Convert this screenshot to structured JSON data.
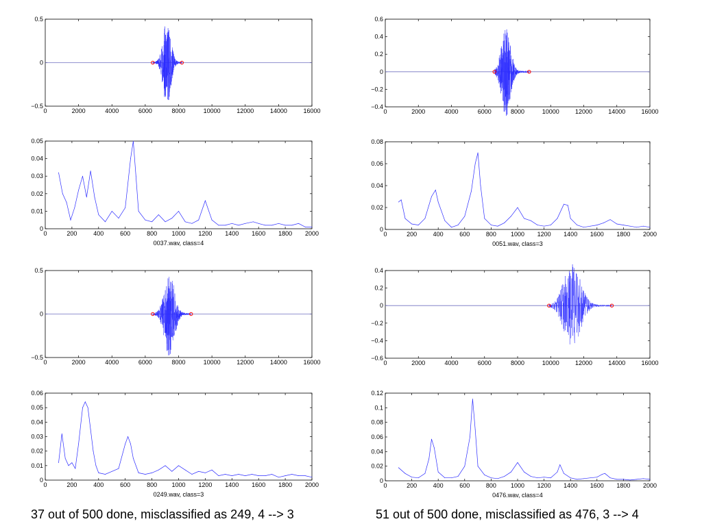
{
  "colors": {
    "wave": "#2b2bff",
    "marker": "#ff0000",
    "axis": "#000000",
    "zero_line": "#7070c0"
  },
  "chart_data": [
    {
      "type": "line",
      "signal": "waveform",
      "xlim": [
        0,
        16000
      ],
      "ylim": [
        -0.5,
        0.5
      ],
      "xticks": [
        "0",
        "2000",
        "4000",
        "6000",
        "8000",
        "10000",
        "12000",
        "14000",
        "16000"
      ],
      "yticks": [
        "-0.5",
        "0",
        "0.5"
      ],
      "series": [
        {
          "burst_start": 6450,
          "burst_end": 8200,
          "peak_x": 7300,
          "peak_amp": 0.48
        }
      ],
      "markers": [
        6450,
        8200
      ],
      "xlabel": ""
    },
    {
      "type": "line",
      "signal": "spectrum",
      "xlim": [
        0,
        2000
      ],
      "ylim": [
        0,
        0.05
      ],
      "xticks": [
        "0",
        "200",
        "400",
        "600",
        "800",
        "1000",
        "1200",
        "1400",
        "1600",
        "1800",
        "2000"
      ],
      "yticks": [
        "0",
        "0.01",
        "0.02",
        "0.03",
        "0.04",
        "0.05"
      ],
      "series": [
        {
          "x": [
            100,
            130,
            160,
            190,
            220,
            250,
            280,
            310,
            340,
            370,
            400,
            450,
            500,
            550,
            600,
            640,
            660,
            680,
            700,
            750,
            800,
            850,
            900,
            950,
            1000,
            1050,
            1100,
            1150,
            1200,
            1250,
            1300,
            1350,
            1400,
            1450,
            1500,
            1560,
            1600,
            1650,
            1700,
            1750,
            1800,
            1850,
            1900,
            1950,
            2000
          ],
          "y": [
            0.032,
            0.02,
            0.015,
            0.005,
            0.012,
            0.022,
            0.03,
            0.018,
            0.033,
            0.018,
            0.008,
            0.004,
            0.01,
            0.006,
            0.012,
            0.04,
            0.05,
            0.03,
            0.01,
            0.005,
            0.004,
            0.008,
            0.004,
            0.006,
            0.01,
            0.004,
            0.003,
            0.005,
            0.016,
            0.005,
            0.002,
            0.002,
            0.003,
            0.002,
            0.003,
            0.004,
            0.003,
            0.002,
            0.002,
            0.003,
            0.002,
            0.002,
            0.003,
            0.001,
            0.001
          ]
        }
      ],
      "xlabel": "0037.wav, class=4"
    },
    {
      "type": "line",
      "signal": "waveform",
      "xlim": [
        0,
        16000
      ],
      "ylim": [
        -0.5,
        0.5
      ],
      "xticks": [
        "0",
        "2000",
        "4000",
        "6000",
        "8000",
        "10000",
        "12000",
        "14000",
        "16000"
      ],
      "yticks": [
        "-0.5",
        "0",
        "0.5"
      ],
      "series": [
        {
          "burst_start": 6450,
          "burst_end": 8750,
          "peak_x": 7450,
          "peak_amp": 0.48
        }
      ],
      "markers": [
        6450,
        8750
      ],
      "xlabel": ""
    },
    {
      "type": "line",
      "signal": "spectrum",
      "xlim": [
        0,
        2000
      ],
      "ylim": [
        0,
        0.06
      ],
      "xticks": [
        "0",
        "200",
        "400",
        "600",
        "800",
        "1000",
        "1200",
        "1400",
        "1600",
        "1800",
        "2000"
      ],
      "yticks": [
        "0",
        "0.01",
        "0.02",
        "0.03",
        "0.04",
        "0.05",
        "0.06"
      ],
      "series": [
        {
          "x": [
            100,
            125,
            150,
            175,
            200,
            225,
            250,
            280,
            300,
            320,
            340,
            360,
            380,
            400,
            450,
            500,
            550,
            600,
            620,
            640,
            660,
            700,
            750,
            800,
            850,
            900,
            950,
            1000,
            1050,
            1100,
            1150,
            1200,
            1250,
            1300,
            1350,
            1400,
            1450,
            1500,
            1550,
            1600,
            1650,
            1700,
            1750,
            1800,
            1850,
            1900,
            1950,
            2000
          ],
          "y": [
            0.012,
            0.032,
            0.015,
            0.01,
            0.012,
            0.008,
            0.025,
            0.05,
            0.054,
            0.05,
            0.035,
            0.02,
            0.01,
            0.005,
            0.004,
            0.006,
            0.008,
            0.025,
            0.03,
            0.025,
            0.015,
            0.005,
            0.004,
            0.005,
            0.007,
            0.01,
            0.006,
            0.01,
            0.007,
            0.004,
            0.006,
            0.005,
            0.007,
            0.003,
            0.004,
            0.003,
            0.004,
            0.003,
            0.004,
            0.003,
            0.003,
            0.004,
            0.002,
            0.003,
            0.004,
            0.003,
            0.003,
            0.002
          ]
        }
      ],
      "xlabel": "0249.wav, class=3"
    },
    {
      "type": "line",
      "signal": "waveform",
      "xlim": [
        0,
        16000
      ],
      "ylim": [
        -0.4,
        0.6
      ],
      "xticks": [
        "0",
        "2000",
        "4000",
        "6000",
        "8000",
        "10000",
        "12000",
        "14000",
        "16000"
      ],
      "yticks": [
        "-0.4",
        "-0.2",
        "0",
        "0.2",
        "0.4",
        "0.6"
      ],
      "series": [
        {
          "burst_start": 6600,
          "burst_end": 8700,
          "peak_x": 7300,
          "peak_amp": 0.5
        }
      ],
      "markers": [
        6600,
        8700
      ],
      "xlabel": ""
    },
    {
      "type": "line",
      "signal": "spectrum",
      "xlim": [
        0,
        2000
      ],
      "ylim": [
        0,
        0.08
      ],
      "xticks": [
        "0",
        "200",
        "400",
        "600",
        "800",
        "1000",
        "1200",
        "1400",
        "1600",
        "1800",
        "2000"
      ],
      "yticks": [
        "0",
        "0.02",
        "0.04",
        "0.06",
        "0.08"
      ],
      "series": [
        {
          "x": [
            100,
            120,
            150,
            200,
            250,
            300,
            350,
            380,
            400,
            450,
            500,
            550,
            600,
            650,
            680,
            700,
            720,
            750,
            800,
            850,
            900,
            950,
            1000,
            1050,
            1100,
            1150,
            1200,
            1250,
            1300,
            1350,
            1380,
            1400,
            1450,
            1500,
            1550,
            1600,
            1650,
            1700,
            1750,
            1800,
            1850,
            1900,
            1950,
            2000
          ],
          "y": [
            0.025,
            0.027,
            0.01,
            0.005,
            0.004,
            0.01,
            0.03,
            0.036,
            0.025,
            0.008,
            0.002,
            0.004,
            0.012,
            0.035,
            0.06,
            0.07,
            0.04,
            0.01,
            0.004,
            0.003,
            0.006,
            0.012,
            0.02,
            0.01,
            0.008,
            0.004,
            0.003,
            0.004,
            0.01,
            0.023,
            0.022,
            0.01,
            0.004,
            0.002,
            0.003,
            0.004,
            0.006,
            0.009,
            0.005,
            0.004,
            0.003,
            0.002,
            0.003,
            0.002
          ]
        }
      ],
      "xlabel": "0051.wav, class=3"
    },
    {
      "type": "line",
      "signal": "waveform",
      "xlim": [
        0,
        16000
      ],
      "ylim": [
        -0.6,
        0.4
      ],
      "xticks": [
        "0",
        "2000",
        "4000",
        "6000",
        "8000",
        "10000",
        "12000",
        "14000",
        "16000"
      ],
      "yticks": [
        "-0.6",
        "-0.4",
        "-0.2",
        "0",
        "0.2",
        "0.4"
      ],
      "series": [
        {
          "burst_start": 9900,
          "burst_end": 13700,
          "peak_x": 11300,
          "peak_amp": 0.5
        }
      ],
      "markers": [
        9900,
        13700
      ],
      "xlabel": ""
    },
    {
      "type": "line",
      "signal": "spectrum",
      "xlim": [
        0,
        2000
      ],
      "ylim": [
        0,
        0.12
      ],
      "xticks": [
        "0",
        "200",
        "400",
        "600",
        "800",
        "1000",
        "1200",
        "1400",
        "1600",
        "1800",
        "2000"
      ],
      "yticks": [
        "0",
        "0.02",
        "0.04",
        "0.06",
        "0.08",
        "0.1",
        "0.12"
      ],
      "series": [
        {
          "x": [
            100,
            150,
            200,
            250,
            300,
            330,
            350,
            370,
            400,
            450,
            500,
            550,
            600,
            640,
            660,
            680,
            700,
            750,
            800,
            850,
            900,
            950,
            1000,
            1050,
            1100,
            1150,
            1200,
            1250,
            1300,
            1320,
            1350,
            1400,
            1450,
            1500,
            1550,
            1600,
            1640,
            1660,
            1700,
            1750,
            1800,
            1850,
            1900,
            1950,
            2000
          ],
          "y": [
            0.018,
            0.01,
            0.005,
            0.004,
            0.01,
            0.03,
            0.057,
            0.045,
            0.012,
            0.004,
            0.004,
            0.006,
            0.02,
            0.06,
            0.112,
            0.07,
            0.02,
            0.008,
            0.004,
            0.003,
            0.006,
            0.012,
            0.025,
            0.012,
            0.006,
            0.004,
            0.005,
            0.004,
            0.012,
            0.022,
            0.01,
            0.004,
            0.002,
            0.003,
            0.004,
            0.005,
            0.009,
            0.01,
            0.004,
            0.002,
            0.002,
            0.001,
            0.002,
            0.003,
            0.002
          ]
        }
      ],
      "xlabel": "0476.wav, class=4"
    }
  ],
  "captions": {
    "left": "37 out of 500 done, misclassified as 249, 4 --> 3",
    "right": "51 out of 500 done, misclassified as 476, 3 --> 4"
  }
}
